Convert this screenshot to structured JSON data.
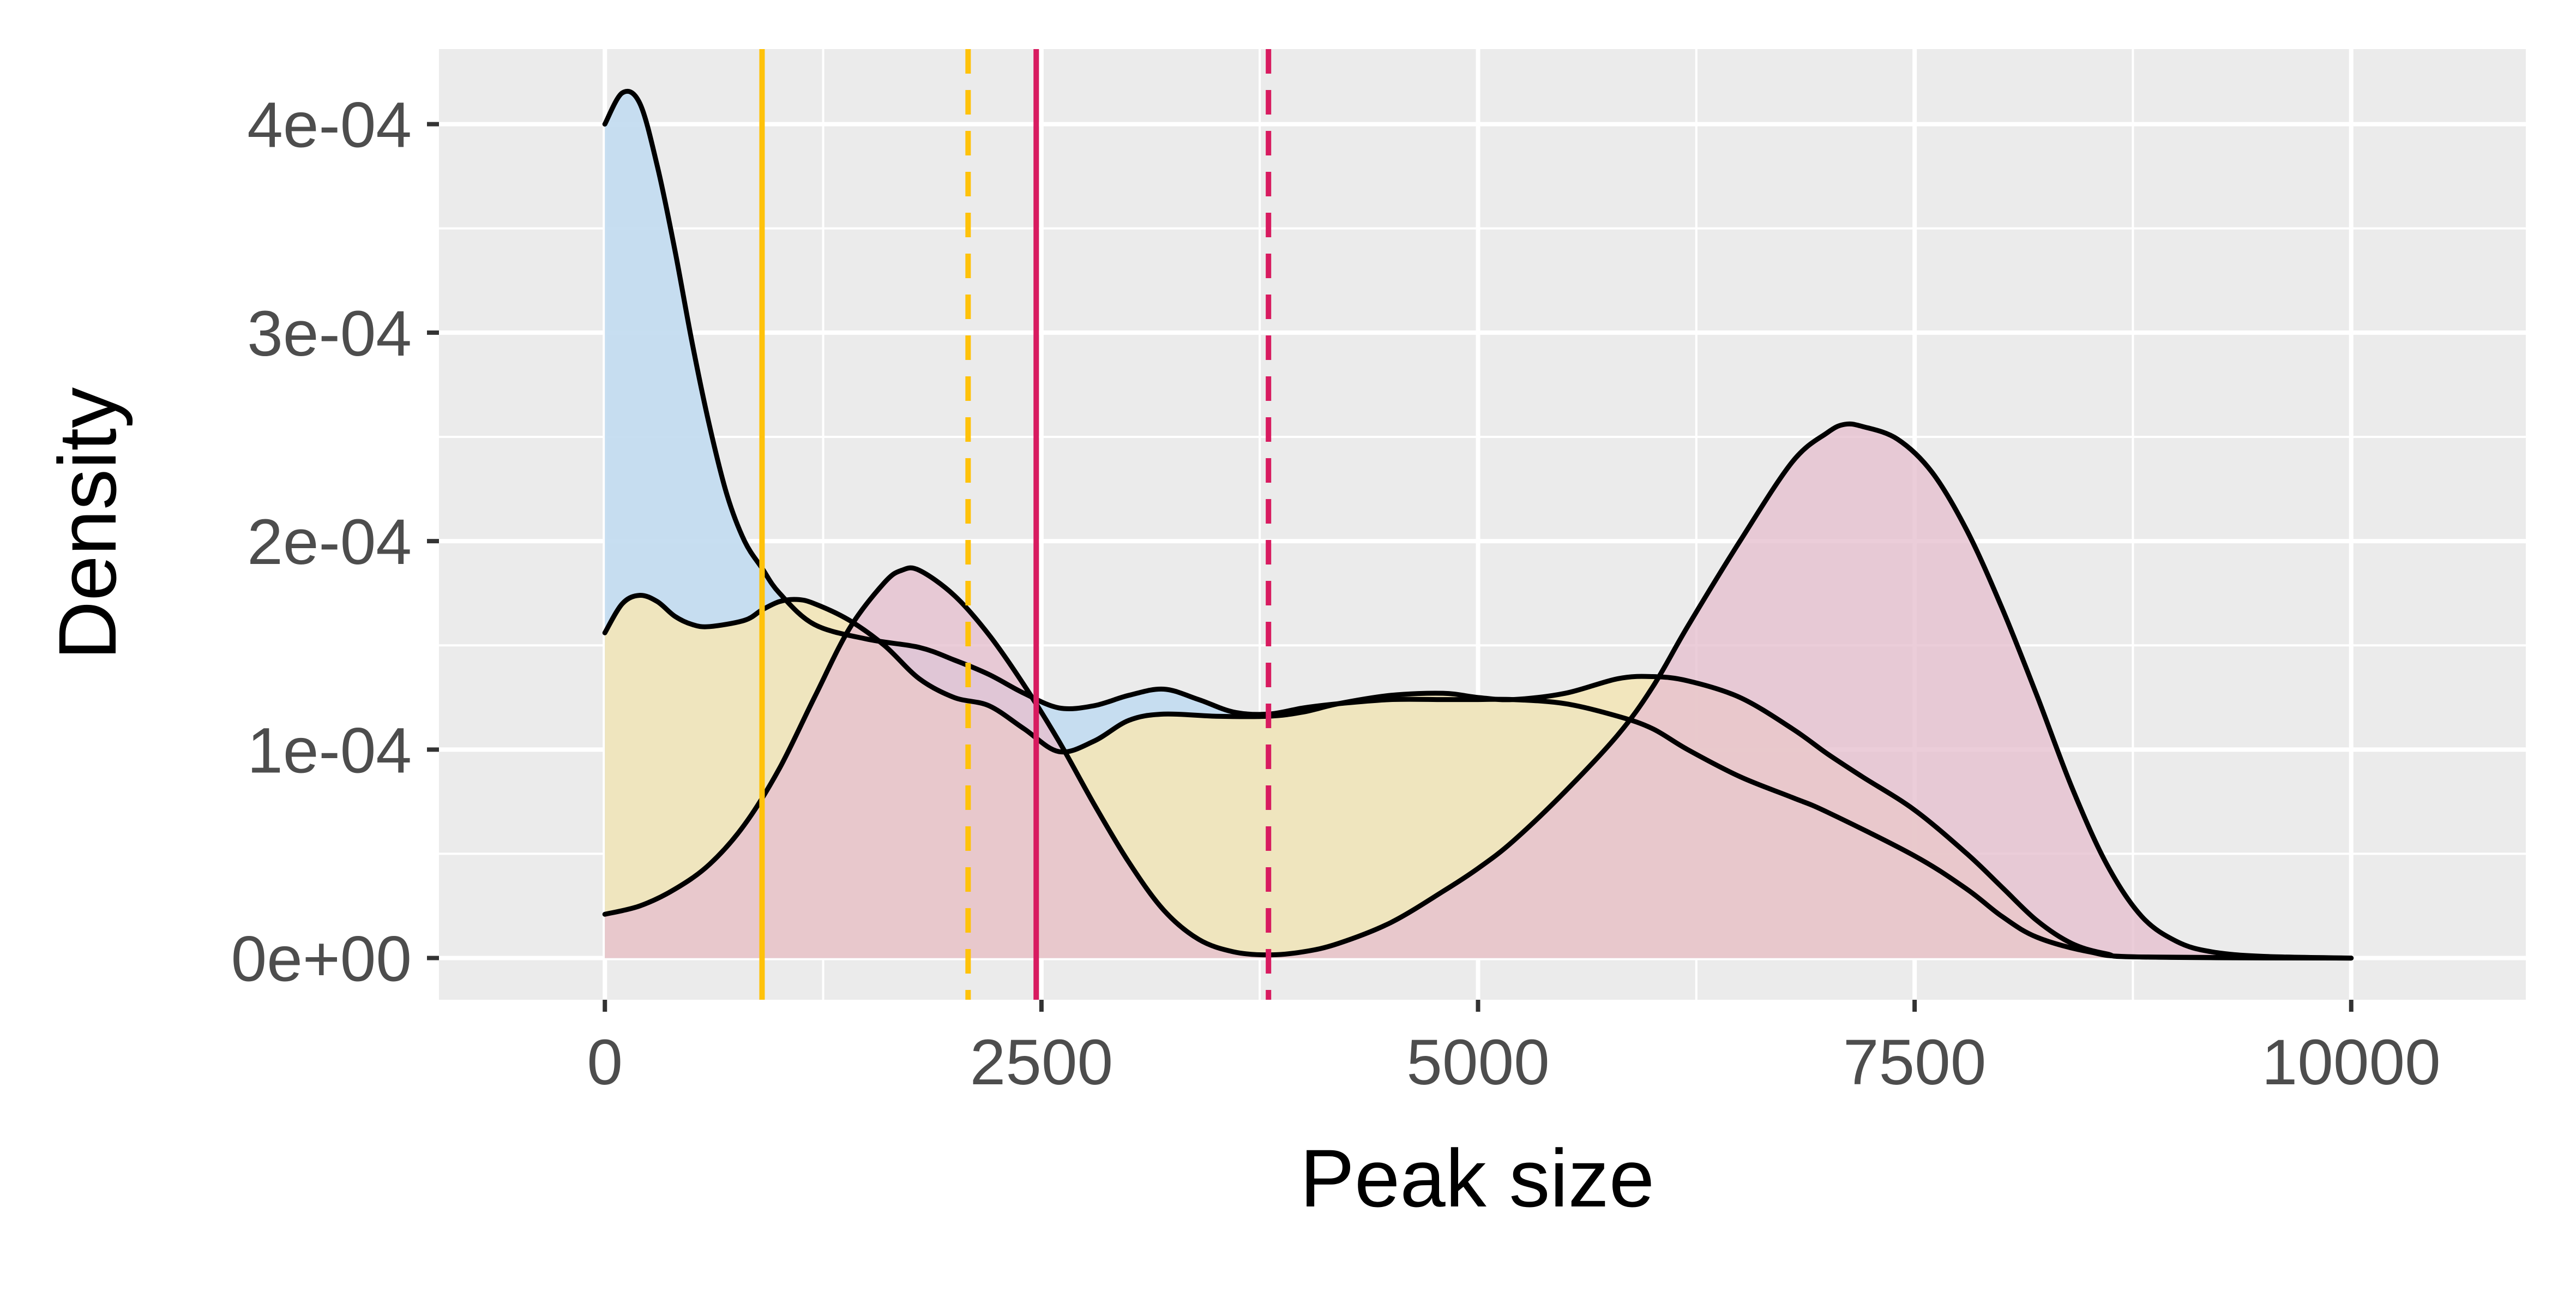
{
  "chart_data": {
    "type": "area",
    "xlabel": "Peak size",
    "ylabel": "Density",
    "xlim": [
      -950,
      11000
    ],
    "ylim": [
      -2e-05,
      0.000436
    ],
    "x_ticks": [
      0,
      2500,
      5000,
      7500,
      10000
    ],
    "x_tick_labels": [
      "0",
      "2500",
      "5000",
      "7500",
      "10000"
    ],
    "y_ticks": [
      0,
      0.0001,
      0.0002,
      0.0003,
      0.0004
    ],
    "y_tick_labels": [
      "0e+00",
      "1e-04",
      "2e-04",
      "3e-04",
      "4e-04"
    ],
    "grid": true,
    "legend": "none",
    "colors": {
      "panel_background": "#EBEBEB",
      "grid": "#FFFFFF",
      "axis_text": "#4D4D4D",
      "outline": "#000000",
      "yellow_line": "#FFC20A",
      "magenta_line": "#D81B60"
    },
    "series": [
      {
        "fill": "#C4DCF0",
        "fill_opacity": 0.95,
        "points": [
          [
            0,
            0.0004
          ],
          [
            100,
            0.000415
          ],
          [
            200,
            0.00041
          ],
          [
            300,
            0.00038
          ],
          [
            400,
            0.00034
          ],
          [
            500,
            0.000295
          ],
          [
            600,
            0.000255
          ],
          [
            700,
            0.000222
          ],
          [
            800,
            0.0002
          ],
          [
            900,
            0.000187
          ],
          [
            1000,
            0.000175
          ],
          [
            1200,
            0.00016
          ],
          [
            1500,
            0.000153
          ],
          [
            1800,
            0.000149
          ],
          [
            2000,
            0.000143
          ],
          [
            2200,
            0.000136
          ],
          [
            2400,
            0.000127
          ],
          [
            2600,
            0.00012
          ],
          [
            2800,
            0.000121
          ],
          [
            3000,
            0.000126
          ],
          [
            3200,
            0.000129
          ],
          [
            3400,
            0.000124
          ],
          [
            3600,
            0.000118
          ],
          [
            3800,
            0.000117
          ],
          [
            4000,
            0.00012
          ],
          [
            4200,
            0.000122
          ],
          [
            4500,
            0.000124
          ],
          [
            4800,
            0.000124
          ],
          [
            5000,
            0.000124
          ],
          [
            5200,
            0.000124
          ],
          [
            5500,
            0.000122
          ],
          [
            5800,
            0.000116
          ],
          [
            6000,
            0.00011
          ],
          [
            6200,
            0.0001
          ],
          [
            6500,
            8.7e-05
          ],
          [
            6800,
            7.7e-05
          ],
          [
            7000,
            7e-05
          ],
          [
            7500,
            4.9e-05
          ],
          [
            7800,
            3.3e-05
          ],
          [
            8000,
            2e-05
          ],
          [
            8200,
            1e-05
          ],
          [
            8500,
            3e-06
          ],
          [
            8800,
            5e-07
          ],
          [
            10000,
            0.0
          ]
        ]
      },
      {
        "fill": "#F3E6B8",
        "fill_opacity": 0.9,
        "points": [
          [
            0,
            0.000156
          ],
          [
            100,
            0.00017
          ],
          [
            200,
            0.000174
          ],
          [
            300,
            0.000171
          ],
          [
            400,
            0.000164
          ],
          [
            500,
            0.00016
          ],
          [
            600,
            0.000159
          ],
          [
            800,
            0.000162
          ],
          [
            900,
            0.000167
          ],
          [
            1000,
            0.000171
          ],
          [
            1100,
            0.000172
          ],
          [
            1200,
            0.00017
          ],
          [
            1400,
            0.000162
          ],
          [
            1600,
            0.00015
          ],
          [
            1800,
            0.000134
          ],
          [
            2000,
            0.000125
          ],
          [
            2200,
            0.000121
          ],
          [
            2400,
            0.00011
          ],
          [
            2600,
            9.9e-05
          ],
          [
            2800,
            0.000104
          ],
          [
            3000,
            0.000114
          ],
          [
            3200,
            0.000117
          ],
          [
            3500,
            0.000116
          ],
          [
            3800,
            0.000116
          ],
          [
            4000,
            0.000118
          ],
          [
            4200,
            0.000122
          ],
          [
            4500,
            0.000126
          ],
          [
            4800,
            0.000127
          ],
          [
            5000,
            0.000125
          ],
          [
            5200,
            0.000124
          ],
          [
            5500,
            0.000127
          ],
          [
            5800,
            0.000134
          ],
          [
            6000,
            0.000135
          ],
          [
            6200,
            0.000133
          ],
          [
            6500,
            0.000125
          ],
          [
            6800,
            0.00011
          ],
          [
            7000,
            9.8e-05
          ],
          [
            7200,
            8.7e-05
          ],
          [
            7500,
            7.1e-05
          ],
          [
            7800,
            5e-05
          ],
          [
            8000,
            3.4e-05
          ],
          [
            8200,
            1.8e-05
          ],
          [
            8400,
            7e-06
          ],
          [
            8600,
            2e-06
          ],
          [
            8800,
            5e-07
          ],
          [
            10000,
            0.0
          ]
        ]
      },
      {
        "fill": "#E6C0D0",
        "fill_opacity": 0.8,
        "points": [
          [
            0,
            2.1e-05
          ],
          [
            200,
            2.5e-05
          ],
          [
            400,
            3.3e-05
          ],
          [
            600,
            4.5e-05
          ],
          [
            800,
            6.4e-05
          ],
          [
            1000,
            9.1e-05
          ],
          [
            1200,
            0.000125
          ],
          [
            1400,
            0.000158
          ],
          [
            1600,
            0.00018
          ],
          [
            1700,
            0.000186
          ],
          [
            1800,
            0.000186
          ],
          [
            2000,
            0.000174
          ],
          [
            2200,
            0.000155
          ],
          [
            2400,
            0.000131
          ],
          [
            2600,
            0.000104
          ],
          [
            2800,
            7.4e-05
          ],
          [
            3000,
            4.6e-05
          ],
          [
            3200,
            2.3e-05
          ],
          [
            3400,
            9e-06
          ],
          [
            3600,
            3e-06
          ],
          [
            3800,
            1.5e-06
          ],
          [
            4000,
            3e-06
          ],
          [
            4200,
            7e-06
          ],
          [
            4500,
            1.7e-05
          ],
          [
            4800,
            3.2e-05
          ],
          [
            5000,
            4.3e-05
          ],
          [
            5200,
            5.6e-05
          ],
          [
            5500,
            8e-05
          ],
          [
            5800,
            0.000107
          ],
          [
            6000,
            0.00013
          ],
          [
            6200,
            0.000159
          ],
          [
            6500,
            0.0002
          ],
          [
            6800,
            0.000238
          ],
          [
            7000,
            0.000252
          ],
          [
            7100,
            0.000256
          ],
          [
            7200,
            0.000255
          ],
          [
            7400,
            0.000249
          ],
          [
            7600,
            0.000233
          ],
          [
            7800,
            0.000205
          ],
          [
            8000,
            0.000168
          ],
          [
            8200,
            0.000126
          ],
          [
            8400,
            8.2e-05
          ],
          [
            8600,
            4.5e-05
          ],
          [
            8800,
            2e-05
          ],
          [
            9000,
            8e-06
          ],
          [
            9200,
            3e-06
          ],
          [
            9500,
            8e-07
          ],
          [
            10000,
            0.0
          ]
        ]
      }
    ],
    "vlines": [
      {
        "x": 900,
        "color": "#FFC20A",
        "style": "solid"
      },
      {
        "x": 2080,
        "color": "#FFC20A",
        "style": "dashed"
      },
      {
        "x": 2470,
        "color": "#D81B60",
        "style": "solid"
      },
      {
        "x": 3800,
        "color": "#D81B60",
        "style": "dashed"
      }
    ]
  }
}
